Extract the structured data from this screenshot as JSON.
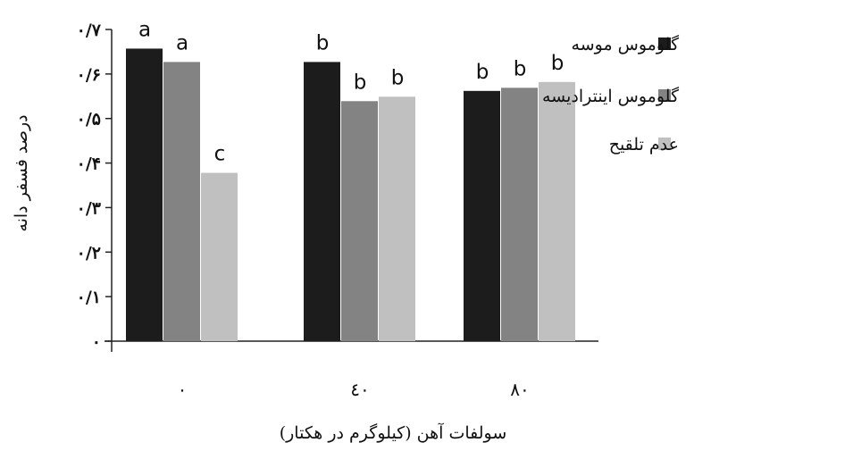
{
  "chart_data": {
    "type": "bar",
    "categories": [
      "۰",
      "٤٠",
      "٨٠"
    ],
    "series": [
      {
        "name": "گلوموس موسه",
        "color": "#1c1c1c",
        "values": [
          0.657,
          0.627,
          0.562
        ],
        "sig": [
          "a",
          "b",
          "b"
        ]
      },
      {
        "name": "گلوموس اینترادیسه",
        "color": "#838383",
        "values": [
          0.627,
          0.539,
          0.569
        ],
        "sig": [
          "a",
          "b",
          "b"
        ]
      },
      {
        "name": "عدم تلقیح",
        "color": "#c0c0c0",
        "values": [
          0.378,
          0.549,
          0.582
        ],
        "sig": [
          "c",
          "b",
          "b"
        ]
      }
    ],
    "xlabel": "سولفات آهن (کیلوگرم در هکتار)",
    "ylabel": "درصد فسفر دانه",
    "ylim": [
      0,
      0.7
    ],
    "yticks": [
      0,
      0.1,
      0.2,
      0.3,
      0.4,
      0.5,
      0.6,
      0.7
    ],
    "ytick_labels": [
      "۰",
      "۰/۱",
      "۰/۲",
      "۰/۳",
      "۰/۴",
      "۰/۵",
      "۰/۶",
      "۰/۷"
    ],
    "grid": false,
    "legend_position": "right"
  }
}
